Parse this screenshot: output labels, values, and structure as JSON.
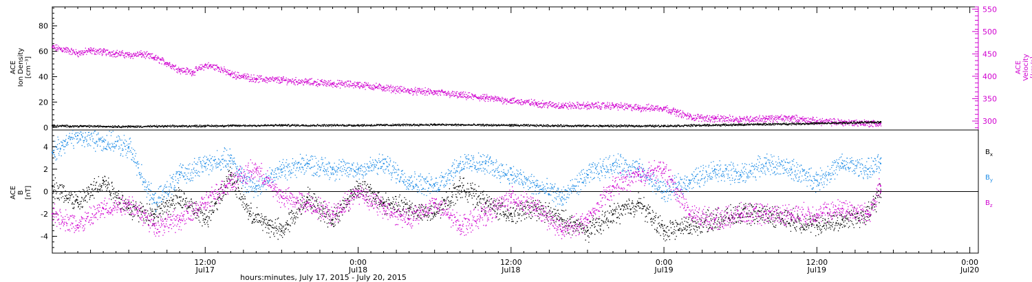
{
  "colors": {
    "black": "#000000",
    "magenta": "#d000d0",
    "blue": "#1e8ce6",
    "frame": "#000000"
  },
  "x_title": "hours:minutes, July 17, 2015 - July 20, 2015",
  "x_ticks": [
    {
      "t": 12,
      "time": "12:00",
      "date": "Jul17"
    },
    {
      "t": 24,
      "time": "0:00",
      "date": "Jul18"
    },
    {
      "t": 36,
      "time": "12:00",
      "date": "Jul18"
    },
    {
      "t": 48,
      "time": "0:00",
      "date": "Jul19"
    },
    {
      "t": 60,
      "time": "12:00",
      "date": "Jul19"
    },
    {
      "t": 72,
      "time": "0:00",
      "date": "Jul20"
    }
  ],
  "chart_data": [
    {
      "type": "scatter",
      "xlabel": "hours:minutes, July 17, 2015 - July 20, 2015",
      "xlim": [
        "2015-07-17 00:00",
        "2015-07-20 00:40"
      ],
      "left_axis": {
        "label_lines": [
          "ACE",
          "Ion Density",
          "[cm⁻³]"
        ],
        "ylim": [
          -2,
          95
        ],
        "ticks": [
          0,
          20,
          40,
          60,
          80
        ]
      },
      "right_axis": {
        "label_lines": [
          "ACE",
          "Velocity",
          "[km/s]"
        ],
        "ylim": [
          280,
          555
        ],
        "ticks": [
          300,
          350,
          400,
          450,
          500,
          550
        ]
      },
      "series": [
        {
          "name": "",
          "color": "magenta",
          "axis": "right",
          "x": [
            "07-17 00:00",
            "07-17 01:00",
            "07-17 02:00",
            "07-17 03:00",
            "07-17 04:00",
            "07-17 05:00",
            "07-17 06:00",
            "07-17 07:00",
            "07-17 08:00",
            "07-17 09:00",
            "07-17 10:00",
            "07-17 11:00",
            "07-17 12:00",
            "07-17 13:00",
            "07-17 14:00",
            "07-17 15:00",
            "07-17 16:00",
            "07-17 18:00",
            "07-17 20:00",
            "07-17 22:00",
            "07-18 00:00",
            "07-18 02:00",
            "07-18 04:00",
            "07-18 06:00",
            "07-18 08:00",
            "07-18 10:00",
            "07-18 12:00",
            "07-18 14:00",
            "07-18 16:00",
            "07-18 18:00",
            "07-18 20:00",
            "07-18 22:00",
            "07-19 00:00",
            "07-19 01:00",
            "07-19 02:00",
            "07-19 04:00",
            "07-19 06:00",
            "07-19 08:00",
            "07-19 10:00",
            "07-19 12:00",
            "07-19 14:00",
            "07-19 16:00",
            "07-19 17:00"
          ],
          "y": [
            465,
            460,
            452,
            458,
            455,
            452,
            448,
            450,
            442,
            430,
            415,
            410,
            425,
            420,
            405,
            400,
            395,
            392,
            388,
            384,
            382,
            375,
            368,
            365,
            358,
            352,
            346,
            340,
            335,
            335,
            335,
            330,
            330,
            320,
            310,
            306,
            305,
            306,
            307,
            300,
            298,
            296,
            294
          ]
        },
        {
          "name": "",
          "color": "black",
          "axis": "left",
          "x": [
            "07-17 00:00",
            "07-17 06:00",
            "07-17 12:00",
            "07-17 18:00",
            "07-18 00:00",
            "07-18 06:00",
            "07-18 12:00",
            "07-18 18:00",
            "07-19 00:00",
            "07-19 06:00",
            "07-19 12:00",
            "07-19 17:00"
          ],
          "y": [
            1.5,
            1.0,
            1.5,
            2.0,
            2.0,
            2.5,
            2.0,
            1.5,
            1.5,
            2.5,
            3.5,
            4.5
          ]
        }
      ]
    },
    {
      "type": "scatter",
      "xlabel": "hours:minutes, July 17, 2015 - July 20, 2015",
      "xlim": [
        "2015-07-17 00:00",
        "2015-07-20 00:40"
      ],
      "left_axis": {
        "label_lines": [
          "ACE",
          "B",
          "[nT]"
        ],
        "ylim": [
          -5.5,
          5.5
        ],
        "ticks": [
          -4,
          -2,
          0,
          2,
          4
        ]
      },
      "zero_line": true,
      "series": [
        {
          "name": "Bx",
          "legend": {
            "main": "B",
            "sub": "x"
          },
          "color": "black",
          "x": [
            "07-17 00:00",
            "07-17 02:00",
            "07-17 04:00",
            "07-17 06:00",
            "07-17 08:00",
            "07-17 10:00",
            "07-17 12:00",
            "07-17 14:00",
            "07-17 15:30",
            "07-17 17:00",
            "07-17 18:00",
            "07-17 20:00",
            "07-17 22:00",
            "07-18 00:00",
            "07-18 02:00",
            "07-18 04:00",
            "07-18 06:00",
            "07-18 08:00",
            "07-18 10:00",
            "07-18 12:00",
            "07-18 14:00",
            "07-18 16:00",
            "07-18 18:00",
            "07-18 20:00",
            "07-18 22:00",
            "07-19 00:00",
            "07-19 02:00",
            "07-19 04:00",
            "07-19 06:00",
            "07-19 08:00",
            "07-19 10:00",
            "07-19 12:00",
            "07-19 14:00",
            "07-19 16:00",
            "07-19 17:00"
          ],
          "y": [
            0.5,
            -1.0,
            1.0,
            -1.5,
            -2.0,
            -0.5,
            -2.5,
            1.5,
            -2.0,
            -3.0,
            -3.5,
            -0.5,
            -2.5,
            0.5,
            -1.0,
            -1.5,
            -2.0,
            0.5,
            -1.0,
            -2.0,
            -1.5,
            -2.5,
            -3.5,
            -2.0,
            -1.0,
            -3.5,
            -3.0,
            -2.5,
            -2.0,
            -2.0,
            -2.5,
            -3.0,
            -2.5,
            -2.0,
            0.0
          ]
        },
        {
          "name": "By",
          "legend": {
            "main": "B",
            "sub": "y"
          },
          "color": "blue",
          "x": [
            "07-17 00:00",
            "07-17 01:00",
            "07-17 02:00",
            "07-17 04:00",
            "07-17 06:00",
            "07-17 08:00",
            "07-17 10:00",
            "07-17 12:00",
            "07-17 14:00",
            "07-17 15:00",
            "07-17 16:00",
            "07-17 18:00",
            "07-17 20:00",
            "07-17 22:00",
            "07-18 00:00",
            "07-18 02:00",
            "07-18 04:00",
            "07-18 06:00",
            "07-18 08:00",
            "07-18 10:00",
            "07-18 12:00",
            "07-18 14:00",
            "07-18 16:00",
            "07-18 18:00",
            "07-18 20:00",
            "07-18 22:00",
            "07-19 00:00",
            "07-19 02:00",
            "07-19 04:00",
            "07-19 06:00",
            "07-19 08:00",
            "07-19 10:00",
            "07-19 12:00",
            "07-19 14:00",
            "07-19 16:00",
            "07-19 17:00"
          ],
          "y": [
            3.5,
            4.5,
            5.0,
            4.5,
            4.0,
            -1.0,
            1.5,
            2.5,
            3.0,
            1.0,
            0.5,
            2.0,
            2.5,
            2.0,
            2.0,
            2.5,
            1.0,
            0.5,
            2.5,
            2.5,
            1.5,
            0.5,
            -0.5,
            1.5,
            2.5,
            2.0,
            0.0,
            1.0,
            2.0,
            1.5,
            2.5,
            2.0,
            1.0,
            2.5,
            2.0,
            2.5
          ]
        },
        {
          "name": "Bz",
          "legend": {
            "main": "B",
            "sub": "z"
          },
          "color": "magenta",
          "x": [
            "07-17 00:00",
            "07-17 02:00",
            "07-17 04:00",
            "07-17 06:00",
            "07-17 08:00",
            "07-17 10:00",
            "07-17 12:00",
            "07-17 14:00",
            "07-17 16:00",
            "07-17 18:00",
            "07-17 20:00",
            "07-17 22:00",
            "07-18 00:00",
            "07-18 02:00",
            "07-18 04:00",
            "07-18 06:00",
            "07-18 08:00",
            "07-18 10:00",
            "07-18 12:00",
            "07-18 14:00",
            "07-18 16:00",
            "07-18 18:00",
            "07-18 20:00",
            "07-18 22:00",
            "07-19 00:00",
            "07-19 02:00",
            "07-19 04:00",
            "07-19 06:00",
            "07-19 08:00",
            "07-19 10:00",
            "07-19 12:00",
            "07-19 14:00",
            "07-19 16:00",
            "07-19 17:00"
          ],
          "y": [
            -2.0,
            -3.0,
            -1.5,
            -1.0,
            -3.0,
            -2.5,
            -1.0,
            1.0,
            2.0,
            -0.5,
            -1.0,
            -2.0,
            0.0,
            -1.5,
            -2.5,
            -1.0,
            -3.0,
            -2.0,
            -0.5,
            -1.5,
            -3.5,
            -2.5,
            0.5,
            1.5,
            2.0,
            -2.0,
            -2.5,
            -2.0,
            -2.0,
            -2.0,
            -2.0,
            -1.5,
            -2.0,
            0.5
          ]
        }
      ]
    }
  ]
}
